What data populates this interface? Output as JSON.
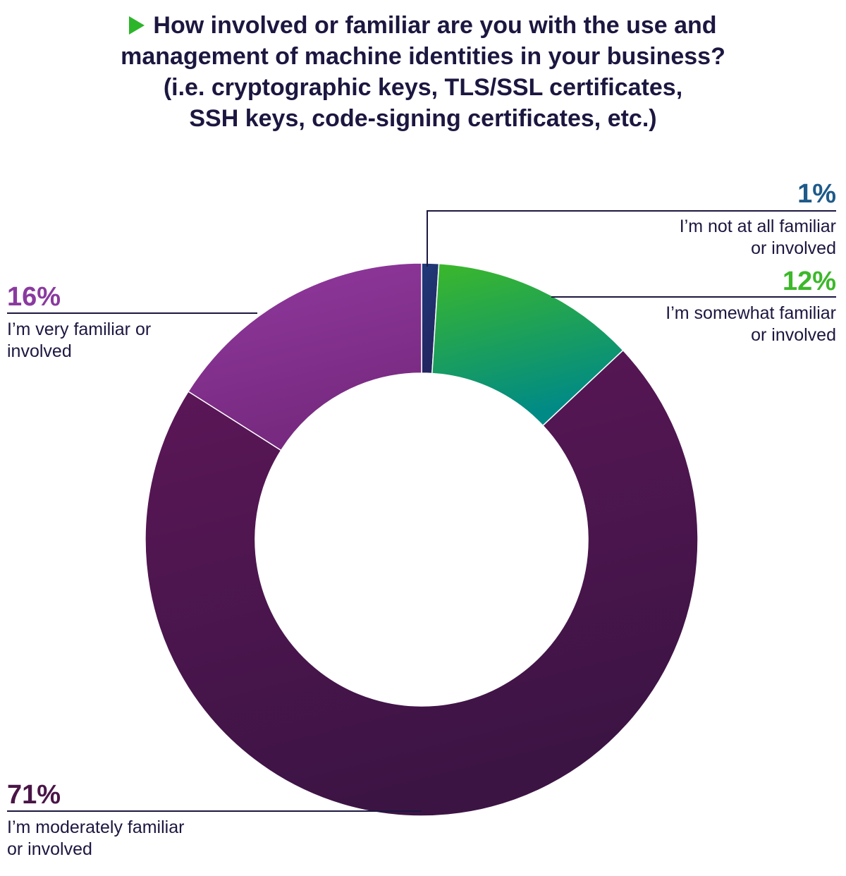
{
  "title_lines": [
    "How involved or familiar are you with the use and",
    "management of machine identities in your business?",
    "(i.e. cryptographic keys, TLS/SSL certificates,",
    "SSH keys, code-signing certificates, etc.)"
  ],
  "colors": {
    "title_bullet": "#2db52a",
    "leader_line": "#1c1740"
  },
  "chart_data": {
    "type": "pie",
    "variant": "donut",
    "title": "How involved or familiar are you with the use and management of machine identities in your business? (i.e. cryptographic keys, TLS/SSL certificates, SSH keys, code-signing certificates, etc.)",
    "legend": "none",
    "slices": [
      {
        "label_lines": [
          "I’m not at all familiar",
          "or involved"
        ],
        "value": 1,
        "value_label": "1%",
        "color": "#1f3a7a",
        "color_end": "#232560",
        "label_color": "#1e5a8a"
      },
      {
        "label_lines": [
          "I’m somewhat familiar",
          "or involved"
        ],
        "value": 12,
        "value_label": "12%",
        "color": "#3cb82a",
        "color_end": "#008a86",
        "label_color": "#3cb82a"
      },
      {
        "label_lines": [
          "I’m moderately familiar",
          "or involved"
        ],
        "value": 71,
        "value_label": "71%",
        "color": "#5e1759",
        "color_end": "#3c1444",
        "label_color": "#4a1547"
      },
      {
        "label_lines": [
          "I’m very familiar or",
          "involved"
        ],
        "value": 16,
        "value_label": "16%",
        "color": "#91399f",
        "color_end": "#76297e",
        "label_color": "#8a3a9f"
      }
    ]
  }
}
